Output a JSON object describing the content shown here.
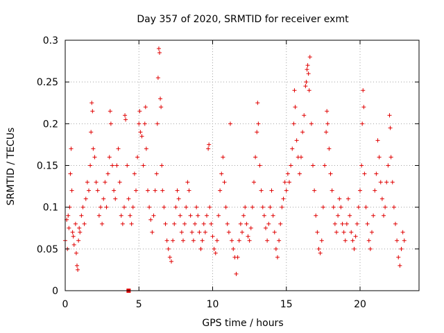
{
  "chart_data": {
    "type": "scatter",
    "title": "Day 357 of 2020, SRMTID for receiver exmt",
    "xlabel": "GPS time / hours",
    "ylabel": "SRMTID / TECUs",
    "xlim": [
      0,
      24
    ],
    "ylim": [
      0,
      0.3
    ],
    "x_ticks": [
      0,
      5,
      10,
      15,
      20
    ],
    "x_tick_labels": [
      "0",
      "5",
      "10",
      "15",
      "20"
    ],
    "y_ticks": [
      0,
      0.05,
      0.1,
      0.15,
      0.2,
      0.25,
      0.3
    ],
    "y_tick_labels": [
      "0",
      "0.05",
      "0.1",
      "0.15",
      "0.2",
      "0.25",
      "0.3"
    ],
    "grid": true,
    "marker": "+",
    "color": "#e00000",
    "series": [
      {
        "name": "SRMTID",
        "points": [
          [
            0.0,
            0.06
          ],
          [
            0.1,
            0.085
          ],
          [
            0.15,
            0.05
          ],
          [
            0.2,
            0.09
          ],
          [
            0.25,
            0.075
          ],
          [
            0.3,
            0.1
          ],
          [
            0.35,
            0.14
          ],
          [
            0.4,
            0.17
          ],
          [
            0.45,
            0.12
          ],
          [
            0.5,
            0.07
          ],
          [
            0.55,
            0.065
          ],
          [
            0.6,
            0.055
          ],
          [
            0.7,
            0.08
          ],
          [
            0.75,
            0.045
          ],
          [
            0.8,
            0.03
          ],
          [
            0.85,
            0.025
          ],
          [
            0.9,
            0.06
          ],
          [
            0.95,
            0.075
          ],
          [
            1.0,
            0.07
          ],
          [
            1.1,
            0.09
          ],
          [
            1.2,
            0.1
          ],
          [
            1.3,
            0.08
          ],
          [
            1.4,
            0.11
          ],
          [
            1.5,
            0.13
          ],
          [
            1.6,
            0.12
          ],
          [
            1.7,
            0.15
          ],
          [
            1.75,
            0.19
          ],
          [
            1.8,
            0.225
          ],
          [
            1.85,
            0.215
          ],
          [
            1.9,
            0.17
          ],
          [
            2.0,
            0.16
          ],
          [
            2.1,
            0.13
          ],
          [
            2.2,
            0.12
          ],
          [
            2.3,
            0.09
          ],
          [
            2.4,
            0.1
          ],
          [
            2.5,
            0.08
          ],
          [
            2.6,
            0.11
          ],
          [
            2.7,
            0.13
          ],
          [
            2.8,
            0.1
          ],
          [
            2.9,
            0.14
          ],
          [
            3.0,
            0.16
          ],
          [
            3.05,
            0.215
          ],
          [
            3.1,
            0.2
          ],
          [
            3.2,
            0.15
          ],
          [
            3.3,
            0.12
          ],
          [
            3.4,
            0.11
          ],
          [
            3.5,
            0.15
          ],
          [
            3.6,
            0.17
          ],
          [
            3.7,
            0.13
          ],
          [
            3.8,
            0.09
          ],
          [
            3.9,
            0.08
          ],
          [
            4.0,
            0.1
          ],
          [
            4.05,
            0.21
          ],
          [
            4.1,
            0.205
          ],
          [
            4.2,
            0.15
          ],
          [
            4.3,
            0.11
          ],
          [
            4.4,
            0.09
          ],
          [
            4.5,
            0.08
          ],
          [
            4.6,
            0.1
          ],
          [
            4.7,
            0.14
          ],
          [
            4.8,
            0.12
          ],
          [
            4.9,
            0.16
          ],
          [
            5.0,
            0.2
          ],
          [
            5.05,
            0.215
          ],
          [
            5.1,
            0.19
          ],
          [
            5.2,
            0.185
          ],
          [
            5.3,
            0.15
          ],
          [
            5.4,
            0.2
          ],
          [
            5.45,
            0.22
          ],
          [
            5.5,
            0.17
          ],
          [
            5.6,
            0.12
          ],
          [
            5.7,
            0.1
          ],
          [
            5.8,
            0.085
          ],
          [
            5.9,
            0.07
          ],
          [
            6.0,
            0.09
          ],
          [
            6.1,
            0.12
          ],
          [
            6.2,
            0.14
          ],
          [
            6.25,
            0.2
          ],
          [
            6.3,
            0.255
          ],
          [
            6.35,
            0.29
          ],
          [
            6.4,
            0.285
          ],
          [
            6.45,
            0.23
          ],
          [
            6.5,
            0.22
          ],
          [
            6.55,
            0.15
          ],
          [
            6.6,
            0.12
          ],
          [
            6.7,
            0.1
          ],
          [
            6.8,
            0.08
          ],
          [
            6.9,
            0.06
          ],
          [
            7.0,
            0.05
          ],
          [
            7.1,
            0.04
          ],
          [
            7.2,
            0.035
          ],
          [
            7.3,
            0.06
          ],
          [
            7.4,
            0.08
          ],
          [
            7.5,
            0.1
          ],
          [
            7.6,
            0.12
          ],
          [
            7.7,
            0.11
          ],
          [
            7.8,
            0.09
          ],
          [
            7.9,
            0.07
          ],
          [
            8.0,
            0.06
          ],
          [
            8.1,
            0.08
          ],
          [
            8.2,
            0.1
          ],
          [
            8.3,
            0.13
          ],
          [
            8.4,
            0.12
          ],
          [
            8.5,
            0.09
          ],
          [
            8.6,
            0.07
          ],
          [
            8.7,
            0.06
          ],
          [
            8.8,
            0.08
          ],
          [
            8.9,
            0.1
          ],
          [
            9.0,
            0.09
          ],
          [
            9.1,
            0.07
          ],
          [
            9.2,
            0.05
          ],
          [
            9.3,
            0.06
          ],
          [
            9.4,
            0.08
          ],
          [
            9.5,
            0.07
          ],
          [
            9.6,
            0.09
          ],
          [
            9.7,
            0.17
          ],
          [
            9.75,
            0.175
          ],
          [
            9.8,
            0.1
          ],
          [
            9.9,
            0.08
          ],
          [
            10.0,
            0.065
          ],
          [
            10.1,
            0.05
          ],
          [
            10.2,
            0.045
          ],
          [
            10.3,
            0.06
          ],
          [
            10.4,
            0.09
          ],
          [
            10.5,
            0.12
          ],
          [
            10.6,
            0.14
          ],
          [
            10.7,
            0.16
          ],
          [
            10.8,
            0.13
          ],
          [
            10.9,
            0.1
          ],
          [
            11.0,
            0.08
          ],
          [
            11.1,
            0.07
          ],
          [
            11.2,
            0.2
          ],
          [
            11.3,
            0.06
          ],
          [
            11.4,
            0.05
          ],
          [
            11.5,
            0.04
          ],
          [
            11.6,
            0.02
          ],
          [
            11.7,
            0.04
          ],
          [
            11.8,
            0.06
          ],
          [
            11.9,
            0.08
          ],
          [
            12.0,
            0.07
          ],
          [
            12.1,
            0.09
          ],
          [
            12.2,
            0.1
          ],
          [
            12.3,
            0.08
          ],
          [
            12.4,
            0.065
          ],
          [
            12.5,
            0.06
          ],
          [
            12.6,
            0.075
          ],
          [
            12.7,
            0.1
          ],
          [
            12.8,
            0.13
          ],
          [
            12.9,
            0.16
          ],
          [
            13.0,
            0.19
          ],
          [
            13.05,
            0.225
          ],
          [
            13.1,
            0.2
          ],
          [
            13.2,
            0.15
          ],
          [
            13.3,
            0.12
          ],
          [
            13.4,
            0.1
          ],
          [
            13.5,
            0.09
          ],
          [
            13.6,
            0.075
          ],
          [
            13.7,
            0.06
          ],
          [
            13.8,
            0.08
          ],
          [
            13.9,
            0.1
          ],
          [
            14.0,
            0.12
          ],
          [
            14.1,
            0.09
          ],
          [
            14.2,
            0.07
          ],
          [
            14.3,
            0.05
          ],
          [
            14.4,
            0.04
          ],
          [
            14.5,
            0.06
          ],
          [
            14.6,
            0.08
          ],
          [
            14.7,
            0.1
          ],
          [
            14.8,
            0.11
          ],
          [
            14.9,
            0.13
          ],
          [
            15.0,
            0.12
          ],
          [
            15.1,
            0.14
          ],
          [
            15.2,
            0.13
          ],
          [
            15.3,
            0.15
          ],
          [
            15.4,
            0.17
          ],
          [
            15.5,
            0.2
          ],
          [
            15.55,
            0.24
          ],
          [
            15.6,
            0.22
          ],
          [
            15.7,
            0.18
          ],
          [
            15.8,
            0.16
          ],
          [
            15.9,
            0.14
          ],
          [
            16.0,
            0.16
          ],
          [
            16.1,
            0.19
          ],
          [
            16.2,
            0.21
          ],
          [
            16.3,
            0.245
          ],
          [
            16.35,
            0.25
          ],
          [
            16.4,
            0.265
          ],
          [
            16.45,
            0.27
          ],
          [
            16.5,
            0.26
          ],
          [
            16.55,
            0.24
          ],
          [
            16.6,
            0.28
          ],
          [
            16.7,
            0.2
          ],
          [
            16.8,
            0.15
          ],
          [
            16.9,
            0.12
          ],
          [
            17.0,
            0.09
          ],
          [
            17.1,
            0.07
          ],
          [
            17.2,
            0.05
          ],
          [
            17.3,
            0.045
          ],
          [
            17.4,
            0.06
          ],
          [
            17.5,
            0.1
          ],
          [
            17.6,
            0.15
          ],
          [
            17.7,
            0.19
          ],
          [
            17.75,
            0.215
          ],
          [
            17.8,
            0.2
          ],
          [
            17.9,
            0.17
          ],
          [
            18.0,
            0.14
          ],
          [
            18.1,
            0.12
          ],
          [
            18.2,
            0.1
          ],
          [
            18.3,
            0.08
          ],
          [
            18.4,
            0.07
          ],
          [
            18.5,
            0.09
          ],
          [
            18.6,
            0.11
          ],
          [
            18.7,
            0.1
          ],
          [
            18.8,
            0.08
          ],
          [
            18.9,
            0.07
          ],
          [
            19.0,
            0.06
          ],
          [
            19.1,
            0.08
          ],
          [
            19.2,
            0.11
          ],
          [
            19.3,
            0.09
          ],
          [
            19.4,
            0.07
          ],
          [
            19.5,
            0.06
          ],
          [
            19.6,
            0.05
          ],
          [
            19.7,
            0.065
          ],
          [
            19.8,
            0.08
          ],
          [
            19.9,
            0.1
          ],
          [
            20.0,
            0.12
          ],
          [
            20.1,
            0.15
          ],
          [
            20.15,
            0.2
          ],
          [
            20.2,
            0.24
          ],
          [
            20.25,
            0.22
          ],
          [
            20.3,
            0.14
          ],
          [
            20.4,
            0.1
          ],
          [
            20.5,
            0.08
          ],
          [
            20.6,
            0.06
          ],
          [
            20.7,
            0.05
          ],
          [
            20.8,
            0.07
          ],
          [
            20.9,
            0.09
          ],
          [
            21.0,
            0.12
          ],
          [
            21.1,
            0.14
          ],
          [
            21.2,
            0.18
          ],
          [
            21.3,
            0.16
          ],
          [
            21.4,
            0.13
          ],
          [
            21.5,
            0.11
          ],
          [
            21.6,
            0.09
          ],
          [
            21.7,
            0.1
          ],
          [
            21.8,
            0.13
          ],
          [
            21.9,
            0.15
          ],
          [
            22.0,
            0.21
          ],
          [
            22.05,
            0.195
          ],
          [
            22.1,
            0.16
          ],
          [
            22.2,
            0.13
          ],
          [
            22.3,
            0.1
          ],
          [
            22.4,
            0.08
          ],
          [
            22.5,
            0.06
          ],
          [
            22.6,
            0.04
          ],
          [
            22.7,
            0.03
          ],
          [
            22.8,
            0.05
          ],
          [
            22.9,
            0.07
          ],
          [
            23.0,
            0.06
          ]
        ]
      }
    ],
    "marked_point": {
      "x": 4.3,
      "y": 0.0
    }
  }
}
